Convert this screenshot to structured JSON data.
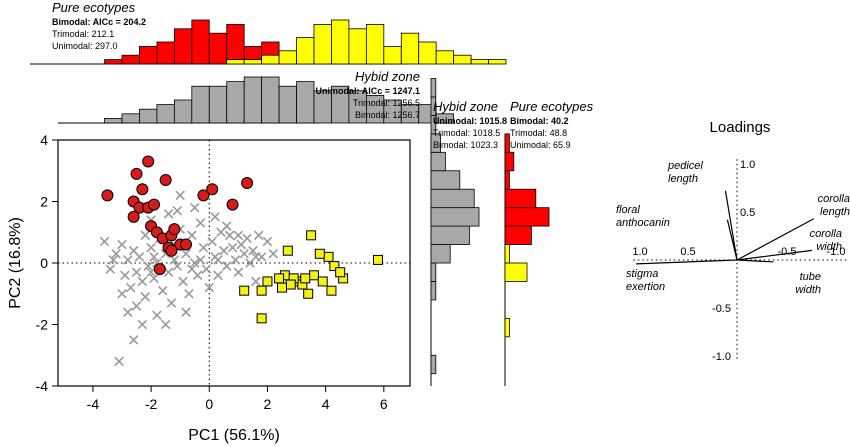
{
  "chart_data": [
    {
      "type": "scatter",
      "xlabel": "PC1 (56.1%)",
      "ylabel": "PC2 (16.8%)",
      "xlim": [
        -5.2,
        6.9
      ],
      "ylim": [
        -4,
        4
      ],
      "xticks": [
        "-4",
        "-2",
        "0",
        "2",
        "4",
        "6"
      ],
      "yticks": [
        "-4",
        "-2",
        "0",
        "2",
        "4"
      ],
      "xtick_values": [
        -4,
        -2,
        0,
        2,
        4,
        6
      ],
      "ytick_values": [
        -4,
        -2,
        0,
        2,
        4
      ],
      "reference_lines": {
        "x": 0,
        "y": 0,
        "style": "dotted"
      },
      "series": [
        {
          "group": "hybrid-zone",
          "marker": "x",
          "color": "#9a9a9a",
          "points": [
            [
              -3.6,
              0.7
            ],
            [
              -3.4,
              -0.2
            ],
            [
              -3.2,
              0.3
            ],
            [
              -3.0,
              -1.0
            ],
            [
              -3.0,
              0.6
            ],
            [
              -2.9,
              -0.4
            ],
            [
              -2.8,
              0.1
            ],
            [
              -2.7,
              -0.8
            ],
            [
              -2.6,
              0.4
            ],
            [
              -2.5,
              -0.3
            ],
            [
              -2.5,
              -1.4
            ],
            [
              -2.4,
              0.2
            ],
            [
              -2.3,
              -0.6
            ],
            [
              -2.2,
              0.9
            ],
            [
              -2.2,
              -1.1
            ],
            [
              -2.1,
              -0.1
            ],
            [
              -2.0,
              1.4
            ],
            [
              -2.0,
              0.5
            ],
            [
              -1.9,
              -0.5
            ],
            [
              -1.8,
              0.0
            ],
            [
              -1.8,
              -1.7
            ],
            [
              -1.7,
              0.8
            ],
            [
              -1.6,
              -0.9
            ],
            [
              -1.5,
              0.3
            ],
            [
              -1.4,
              1.6
            ],
            [
              -1.4,
              -0.3
            ],
            [
              -1.3,
              -1.3
            ],
            [
              -1.2,
              0.6
            ],
            [
              -1.1,
              -0.1
            ],
            [
              -1.0,
              1.1
            ],
            [
              -0.9,
              -0.6
            ],
            [
              -0.8,
              0.3
            ],
            [
              -0.7,
              -1.0
            ],
            [
              -0.6,
              0.9
            ],
            [
              -0.5,
              0.0
            ],
            [
              -0.4,
              -0.4
            ],
            [
              -0.3,
              1.3
            ],
            [
              -0.2,
              0.5
            ],
            [
              -0.1,
              -0.2
            ],
            [
              0.0,
              -0.8
            ],
            [
              0.1,
              0.7
            ],
            [
              0.2,
              0.2
            ],
            [
              0.3,
              -0.4
            ],
            [
              0.4,
              1.0
            ],
            [
              0.5,
              0.4
            ],
            [
              0.6,
              -0.1
            ],
            [
              0.7,
              0.9
            ],
            [
              0.8,
              0.5
            ],
            [
              0.9,
              0.1
            ],
            [
              1.0,
              -0.3
            ],
            [
              1.1,
              0.6
            ],
            [
              1.2,
              0.3
            ],
            [
              1.3,
              0.8
            ],
            [
              1.4,
              0.0
            ],
            [
              1.5,
              0.4
            ],
            [
              1.6,
              -0.6
            ],
            [
              1.7,
              0.9
            ],
            [
              1.8,
              0.2
            ],
            [
              2.0,
              0.7
            ],
            [
              2.2,
              0.3
            ],
            [
              -1.0,
              2.2
            ],
            [
              -0.5,
              1.8
            ],
            [
              -2.8,
              -1.6
            ],
            [
              -3.1,
              -3.2
            ],
            [
              -2.6,
              -2.5
            ],
            [
              -1.5,
              -2.0
            ],
            [
              -0.8,
              -1.6
            ],
            [
              -2.3,
              -2.0
            ],
            [
              -1.2,
              0.1
            ],
            [
              -0.3,
              0.1
            ],
            [
              0.2,
              1.5
            ],
            [
              -3.3,
              0.1
            ],
            [
              -1.9,
              0.2
            ],
            [
              -0.6,
              -0.2
            ],
            [
              0.3,
              0.1
            ],
            [
              1.0,
              0.9
            ],
            [
              1.6,
              0.2
            ],
            [
              -1.1,
              1.7
            ],
            [
              -2.0,
              -0.3
            ],
            [
              0.6,
              1.2
            ]
          ]
        },
        {
          "group": "pure-ecotype-red",
          "marker": "circle",
          "color": "#d71a1a",
          "points": [
            [
              -3.5,
              2.2
            ],
            [
              -2.6,
              2.0
            ],
            [
              -2.3,
              2.4
            ],
            [
              -2.4,
              1.8
            ],
            [
              -2.1,
              1.8
            ],
            [
              -2.0,
              1.2
            ],
            [
              -1.9,
              1.9
            ],
            [
              -2.6,
              1.5
            ],
            [
              -1.8,
              1.0
            ],
            [
              -1.6,
              0.8
            ],
            [
              -1.3,
              0.9
            ],
            [
              -1.4,
              0.5
            ],
            [
              -1.0,
              0.6
            ],
            [
              -0.8,
              0.6
            ],
            [
              -1.2,
              1.1
            ],
            [
              -2.1,
              3.3
            ],
            [
              -1.5,
              2.7
            ],
            [
              -2.5,
              2.9
            ],
            [
              -1.3,
              0.4
            ],
            [
              -0.2,
              2.2
            ],
            [
              0.1,
              2.4
            ],
            [
              1.3,
              2.6
            ],
            [
              0.8,
              1.9
            ],
            [
              -1.7,
              -0.2
            ]
          ]
        },
        {
          "group": "pure-ecotype-yellow",
          "marker": "square",
          "color": "#f2f21a",
          "points": [
            [
              2.7,
              0.4
            ],
            [
              3.5,
              0.9
            ],
            [
              4.1,
              0.2
            ],
            [
              4.3,
              -0.1
            ],
            [
              3.8,
              0.3
            ],
            [
              2.6,
              -0.4
            ],
            [
              3.0,
              -0.6
            ],
            [
              2.4,
              -0.5
            ],
            [
              3.6,
              -0.4
            ],
            [
              4.6,
              -0.5
            ],
            [
              4.2,
              -0.9
            ],
            [
              3.2,
              -0.7
            ],
            [
              2.9,
              -0.5
            ],
            [
              5.8,
              0.1
            ],
            [
              3.9,
              -0.6
            ],
            [
              1.2,
              -0.9
            ],
            [
              1.8,
              -0.9
            ],
            [
              4.5,
              -0.3
            ],
            [
              2.0,
              -0.6
            ],
            [
              3.4,
              -1.0
            ],
            [
              1.8,
              -1.8
            ],
            [
              2.8,
              -0.7
            ],
            [
              3.3,
              -0.5
            ],
            [
              2.5,
              -0.8
            ]
          ]
        }
      ]
    },
    {
      "type": "bar",
      "orientation": "vertical",
      "role": "top-marginal-pure-ecotypes",
      "title": "Pure ecotypes",
      "model_stats": [
        "Bimodal: AICc = 204.2",
        "Trimodal: 212.1",
        "Unimodal: 297.0"
      ],
      "bin_width": 0.6,
      "series": [
        {
          "color": "#ff0000",
          "edges_start": -3.6,
          "values": [
            1,
            2,
            4,
            5,
            8,
            10,
            7,
            9,
            4,
            5,
            2,
            1,
            2,
            1,
            1
          ]
        },
        {
          "color": "#ffff00",
          "edges_start": 0.6,
          "values": [
            1,
            1,
            2,
            3,
            6,
            9,
            10,
            8,
            9,
            4,
            7,
            5,
            3,
            2,
            1,
            1
          ]
        }
      ],
      "max_count": 10
    },
    {
      "type": "bar",
      "orientation": "vertical",
      "role": "top-marginal-hybrid-zone",
      "title": "Hybid zone",
      "model_stats": [
        "Unimodal: AICc = 1247.1",
        "Trimodal: 1256.5",
        "Bimodal: 1256.7"
      ],
      "bin_width": 0.6,
      "series": [
        {
          "color": "#a8a8a8",
          "edges_start": -3.6,
          "values": [
            1,
            2,
            3,
            4,
            5,
            8,
            8,
            9,
            10,
            10,
            8,
            9,
            7,
            8,
            7,
            6,
            5,
            4,
            4,
            2
          ]
        }
      ],
      "max_count": 10
    },
    {
      "type": "bar",
      "orientation": "horizontal",
      "role": "right-marginal-hybrid-zone",
      "title": "Hybid zone",
      "model_stats": [
        "Unimodal: 1015.8",
        "Trimodal: 1018.5",
        "Bimodal: 1023.3"
      ],
      "bin_width": 0.6,
      "series": [
        {
          "color": "#a8a8a8",
          "edges_start": -3.6,
          "values": [
            1,
            0,
            0,
            0,
            1,
            1,
            4,
            8,
            10,
            9,
            6,
            3,
            2,
            1,
            1,
            1
          ]
        }
      ],
      "max_count": 10
    },
    {
      "type": "bar",
      "orientation": "horizontal",
      "role": "right-marginal-pure-ecotypes",
      "title": "Pure ecotypes",
      "model_stats": [
        "Bimodal: 40.2",
        "Trimodal: 48.8",
        "Unimodal: 65.9"
      ],
      "bin_width": 0.6,
      "series": [
        {
          "color": "#ffff00",
          "edges_start": -2.4,
          "values": [
            1,
            0,
            0,
            5,
            1,
            1,
            2
          ]
        },
        {
          "color": "#ff0000",
          "edges_start": 0.6,
          "values": [
            6,
            10,
            7,
            1,
            2,
            1
          ]
        }
      ],
      "max_count": 10
    },
    {
      "type": "line",
      "title": "Loadings",
      "xlim": [
        -1.0,
        1.0
      ],
      "ylim": [
        -1.0,
        1.0
      ],
      "xticks": [
        "1.0",
        "0.5",
        "-0.5",
        "-1.0"
      ],
      "xtick_values": [
        -1.0,
        -0.5,
        0.5,
        1.0
      ],
      "yticks": [
        "1.0",
        "0.5",
        "-0.5",
        "-1.0"
      ],
      "ytick_values": [
        1.0,
        0.5,
        -0.5,
        -1.0
      ],
      "vectors": [
        {
          "label": [
            "pedicel",
            "length"
          ],
          "x": -0.12,
          "y": 0.72
        },
        {
          "label": [
            "floral",
            "anthocanin"
          ],
          "x": -0.1,
          "y": 0.42
        },
        {
          "label": [
            "stigma",
            "exertion"
          ],
          "x": -1.05,
          "y": -0.04
        },
        {
          "label": [
            "corolla",
            "length"
          ],
          "x": 0.8,
          "y": 0.43
        },
        {
          "label": [
            "corolla",
            "width"
          ],
          "x": 0.78,
          "y": 0.1
        },
        {
          "label": [
            "tube",
            "width"
          ],
          "x": 0.38,
          "y": -0.02
        }
      ]
    }
  ]
}
